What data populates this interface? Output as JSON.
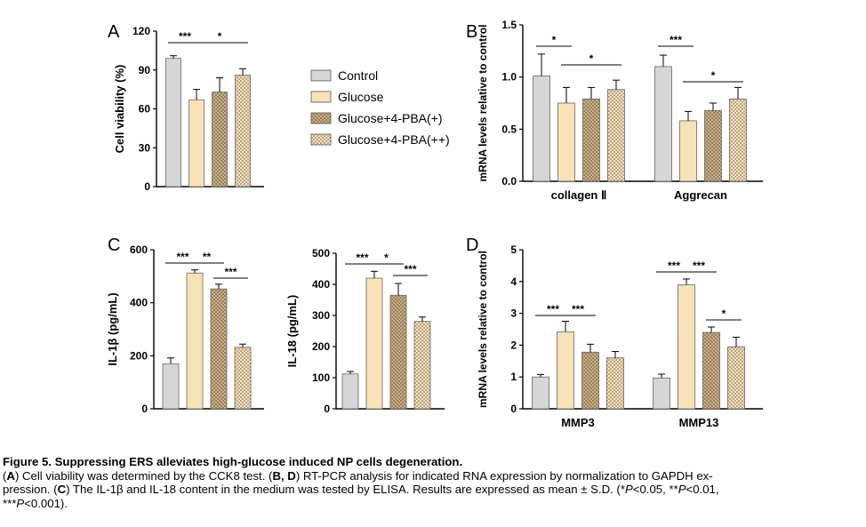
{
  "colors": {
    "control": "#d3d3d3",
    "glucose": "#f8e3b6",
    "pba1": "#bfa27a",
    "pba2": "#d7c29c"
  },
  "legend": [
    "Control",
    "Glucose",
    "Glucose+4-PBA(+)",
    "Glucose+4-PBA(++)"
  ],
  "caption": {
    "title": "Figure 5. Suppressing ERS alleviates high-glucose induced NP cells degeneration.",
    "line1_parts": [
      "(",
      "A",
      ") Cell viability was determined by the CCK8 test. (",
      "B, D",
      ") RT-PCR analysis for indicated RNA expression by normalization to GAPDH ex-"
    ],
    "line2_parts": [
      "pression. (",
      "C",
      ") The IL-1β and IL-18 content in the medium was tested by ELISA. Results are expressed as mean ± S.D. (*",
      "P",
      "<0.05, **",
      "P",
      "<0.01,"
    ],
    "line3_parts": [
      "***",
      "P",
      "<0.001)."
    ]
  },
  "chart_data": [
    {
      "panel": "A",
      "type": "bar",
      "ylabel": "Cell viability (%)",
      "yticks": [
        0,
        30,
        60,
        90,
        120
      ],
      "ylim": [
        0,
        120
      ],
      "categories": [
        "Control",
        "Glucose",
        "Glucose+4-PBA(+)",
        "Glucose+4-PBA(++)"
      ],
      "values": [
        99,
        67,
        73,
        86
      ],
      "errors": [
        2,
        8,
        11,
        5
      ],
      "significance": [
        {
          "from": 0,
          "to": 1,
          "label": "***"
        },
        {
          "from": 1,
          "to": 3,
          "label": "*"
        }
      ]
    },
    {
      "panel": "B",
      "type": "bar",
      "ylabel": "mRNA levels relative to control",
      "yticks": [
        "0.0",
        "0.5",
        "1.0",
        "1.5"
      ],
      "ylim": [
        0,
        1.5
      ],
      "groups": [
        "collagen Ⅱ",
        "Aggrecan"
      ],
      "series": [
        {
          "name": "Control",
          "values": [
            1.01,
            1.1
          ],
          "errors": [
            0.21,
            0.11
          ]
        },
        {
          "name": "Glucose",
          "values": [
            0.75,
            0.58
          ],
          "errors": [
            0.15,
            0.09
          ]
        },
        {
          "name": "Glucose+4-PBA(+)",
          "values": [
            0.79,
            0.68
          ],
          "errors": [
            0.11,
            0.07
          ]
        },
        {
          "name": "Glucose+4-PBA(++)",
          "values": [
            0.88,
            0.79
          ],
          "errors": [
            0.09,
            0.11
          ]
        }
      ],
      "significance": [
        {
          "group": 0,
          "from": 0,
          "to": 1,
          "label": "*"
        },
        {
          "group": 0,
          "from": 1,
          "to": 3,
          "label": "*"
        },
        {
          "group": 1,
          "from": 0,
          "to": 1,
          "label": "***"
        },
        {
          "group": 1,
          "from": 1,
          "to": 3,
          "label": "*"
        }
      ]
    },
    {
      "panel": "C-left",
      "type": "bar",
      "ylabel": "IL-1β (pg/mL)",
      "yticks": [
        0,
        200,
        400,
        600
      ],
      "ylim": [
        0,
        600
      ],
      "categories": [
        "Control",
        "Glucose",
        "Glucose+4-PBA(+)",
        "Glucose+4-PBA(++)"
      ],
      "values": [
        170,
        512,
        452,
        232
      ],
      "errors": [
        22,
        12,
        18,
        12
      ],
      "significance": [
        {
          "from": 0,
          "to": 1,
          "label": "***"
        },
        {
          "from": 1,
          "to": 2,
          "label": "**"
        },
        {
          "from": 2,
          "to": 3,
          "label": "***"
        }
      ]
    },
    {
      "panel": "C-right",
      "type": "bar",
      "ylabel": "IL-18 (pg/mL)",
      "yticks": [
        0,
        100,
        200,
        300,
        400,
        500
      ],
      "ylim": [
        0,
        500
      ],
      "categories": [
        "Control",
        "Glucose",
        "Glucose+4-PBA(+)",
        "Glucose+4-PBA(++)"
      ],
      "values": [
        112,
        420,
        365,
        281
      ],
      "errors": [
        8,
        22,
        38,
        14
      ],
      "significance": [
        {
          "from": 0,
          "to": 1,
          "label": "***"
        },
        {
          "from": 1,
          "to": 2,
          "label": "*"
        },
        {
          "from": 2,
          "to": 3,
          "label": "***"
        }
      ]
    },
    {
      "panel": "D",
      "type": "bar",
      "ylabel": "mRNA levels relative to control",
      "yticks": [
        0,
        1,
        2,
        3,
        4,
        5
      ],
      "ylim": [
        0,
        5
      ],
      "groups": [
        "MMP3",
        "MMP13"
      ],
      "series": [
        {
          "name": "Control",
          "values": [
            1.0,
            0.97
          ],
          "errors": [
            0.08,
            0.12
          ]
        },
        {
          "name": "Glucose",
          "values": [
            2.42,
            3.9
          ],
          "errors": [
            0.33,
            0.18
          ]
        },
        {
          "name": "Glucose+4-PBA(+)",
          "values": [
            1.78,
            2.4
          ],
          "errors": [
            0.25,
            0.17
          ]
        },
        {
          "name": "Glucose+4-PBA(++)",
          "values": [
            1.6,
            1.95
          ],
          "errors": [
            0.2,
            0.3
          ]
        }
      ],
      "significance": [
        {
          "group": 0,
          "from": 0,
          "to": 1,
          "label": "***"
        },
        {
          "group": 0,
          "from": 1,
          "to": 2,
          "label": "***"
        },
        {
          "group": 1,
          "from": 0,
          "to": 1,
          "label": "***"
        },
        {
          "group": 1,
          "from": 1,
          "to": 2,
          "label": "***"
        },
        {
          "group": 1,
          "from": 2,
          "to": 3,
          "label": "*"
        }
      ]
    }
  ]
}
